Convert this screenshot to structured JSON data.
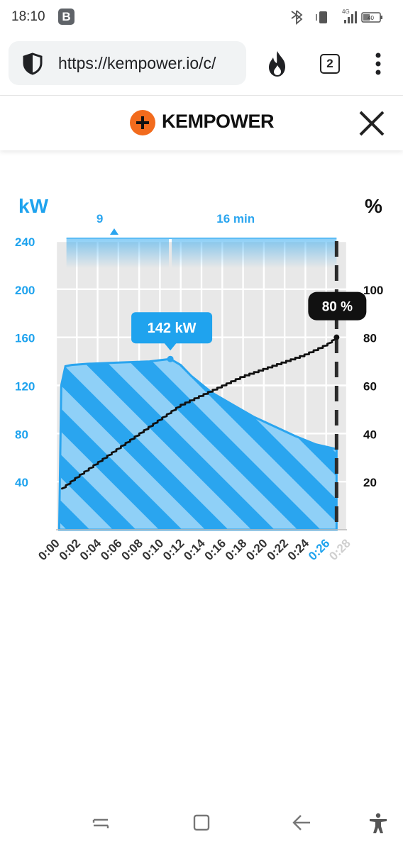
{
  "status_bar": {
    "time": "18:10",
    "badge": "B",
    "network": "4G",
    "battery": "40",
    "icons": [
      "bluetooth-icon",
      "phone-vibrate-icon",
      "signal-icon",
      "battery-icon"
    ]
  },
  "browser": {
    "url": "https://kempower.io/c/",
    "tab_count": "2",
    "icons": [
      "shield-icon",
      "fire-icon",
      "tabs-icon",
      "more-vert-icon"
    ]
  },
  "header": {
    "brand": "KEMPOWER",
    "logo_icon": "plus-circle-icon",
    "close_icon": "close-icon",
    "brand_color": "#f26b1d"
  },
  "chart_data": {
    "type": "area",
    "left_axis_title": "kW",
    "right_axis_title": "%",
    "ylim": [
      0,
      240
    ],
    "yticks_left": [
      "240",
      "200",
      "160",
      "120",
      "80",
      "40"
    ],
    "yticks_right": [
      "100",
      "80",
      "60",
      "40",
      "20"
    ],
    "y2lim": [
      0,
      120
    ],
    "xlim": [
      0,
      28
    ],
    "xticks": [
      "0:00",
      "0:02",
      "0:04",
      "0:06",
      "0:08",
      "0:10",
      "0:12",
      "0:14",
      "0:16",
      "0:18",
      "0:20",
      "0:22",
      "0:24",
      "0:26",
      "0:28"
    ],
    "highlight_xtick": "0:26",
    "grid": true,
    "series": [
      {
        "axis": "left",
        "color": "#27a4ef",
        "x": [
          0.3,
          0.5,
          0.9,
          1.5,
          3,
          6,
          9,
          11,
          12,
          13,
          15,
          17,
          19,
          21,
          23,
          25,
          27
        ],
        "values": [
          0,
          120,
          136,
          137,
          138,
          139,
          140,
          142,
          137,
          128,
          114,
          104,
          94,
          86,
          78,
          71,
          67
        ]
      },
      {
        "axis": "right",
        "color": "#111111",
        "x": [
          0.5,
          2,
          4,
          6,
          8,
          10,
          12,
          14,
          16,
          18,
          20,
          22,
          24,
          26,
          27
        ],
        "values": [
          17,
          22,
          28,
          34,
          40,
          46,
          52,
          56,
          60,
          64,
          67,
          70,
          73,
          77,
          80
        ]
      }
    ],
    "peak_label": "142 kW",
    "peak_x": 11,
    "peak_kw": 142,
    "end_x": 27,
    "end_label": "80 %",
    "top_band": {
      "left_label": "9",
      "right_label": "16 min",
      "split_x": 11
    }
  },
  "nav_bar": {
    "icons": [
      "recents-icon",
      "home-icon",
      "back-icon",
      "accessibility-icon"
    ]
  }
}
